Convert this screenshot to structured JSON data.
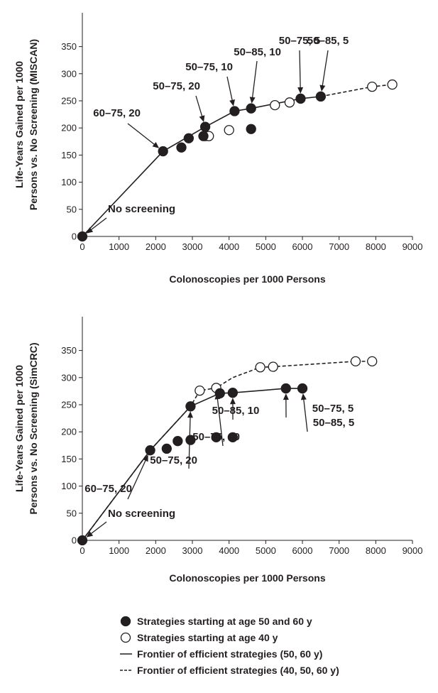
{
  "chart_data": [
    {
      "type": "scatter",
      "xlabel": "Colonoscopies per 1000 Persons",
      "ylabel_line1": "Life-Years Gained per 1000",
      "ylabel_line2": "Persons vs. No Screening (MISCAN)",
      "xlim": [
        0,
        9000
      ],
      "ylim": [
        0,
        350
      ],
      "xticks": [
        "0",
        "1000",
        "2000",
        "3000",
        "4000",
        "5000",
        "6000",
        "7000",
        "8000",
        "9000"
      ],
      "yticks": [
        "0",
        "50",
        "100",
        "150",
        "200",
        "250",
        "300",
        "350"
      ],
      "series": [
        {
          "kind": "filled",
          "points": [
            [
              0,
              0
            ],
            [
              2200,
              157
            ],
            [
              2700,
              164
            ],
            [
              2900,
              181
            ],
            [
              3300,
              185
            ],
            [
              3350,
              202
            ],
            [
              4150,
              231
            ],
            [
              4600,
              198
            ],
            [
              4600,
              236
            ],
            [
              5950,
              254
            ],
            [
              6500,
              258
            ]
          ]
        },
        {
          "kind": "open",
          "points": [
            [
              3350,
              185
            ],
            [
              3450,
              185
            ],
            [
              4000,
              196
            ],
            [
              5250,
              242
            ],
            [
              5650,
              247
            ],
            [
              7900,
              276
            ],
            [
              8450,
              280
            ]
          ]
        },
        {
          "kind": "frontier-solid",
          "points": [
            [
              0,
              0
            ],
            [
              2200,
              157
            ],
            [
              3350,
              202
            ],
            [
              4150,
              231
            ],
            [
              4600,
              236
            ],
            [
              5950,
              254
            ],
            [
              6500,
              258
            ]
          ]
        },
        {
          "kind": "frontier-dashed",
          "points": [
            [
              6500,
              258
            ],
            [
              7900,
              276
            ],
            [
              8450,
              280
            ]
          ]
        }
      ],
      "annotations": [
        {
          "text": "No screening",
          "x": 0,
          "y": 0
        },
        {
          "text": "60–75, 20",
          "x": 2200,
          "y": 157
        },
        {
          "text": "50–75, 20",
          "x": 3350,
          "y": 202
        },
        {
          "text": "50–75, 10",
          "x": 4150,
          "y": 231
        },
        {
          "text": "50–85, 10",
          "x": 4600,
          "y": 236
        },
        {
          "text": "50–75, 5",
          "x": 5950,
          "y": 254
        },
        {
          "text": "50–85, 5",
          "x": 6500,
          "y": 258
        }
      ]
    },
    {
      "type": "scatter",
      "xlabel": "Colonoscopies per 1000 Persons",
      "ylabel_line1": "Life-Years Gained per 1000",
      "ylabel_line2": "Persons vs. No Screening (SimCRC)",
      "xlim": [
        0,
        9000
      ],
      "ylim": [
        0,
        350
      ],
      "xticks": [
        "0",
        "1000",
        "2000",
        "3000",
        "4000",
        "5000",
        "6000",
        "7000",
        "8000",
        "9000"
      ],
      "yticks": [
        "0",
        "50",
        "100",
        "150",
        "200",
        "250",
        "300",
        "350"
      ],
      "series": [
        {
          "kind": "filled",
          "points": [
            [
              0,
              0
            ],
            [
              1850,
              166
            ],
            [
              2300,
              169
            ],
            [
              2600,
              183
            ],
            [
              2950,
              185
            ],
            [
              2950,
              247
            ],
            [
              3650,
              190
            ],
            [
              3750,
              271
            ],
            [
              4100,
              190
            ],
            [
              4100,
              272
            ],
            [
              5550,
              280
            ],
            [
              6000,
              280
            ]
          ]
        },
        {
          "kind": "open",
          "points": [
            [
              3200,
              276
            ],
            [
              3650,
              281
            ],
            [
              4850,
              319
            ],
            [
              5200,
              320
            ],
            [
              7450,
              330
            ],
            [
              7900,
              330
            ]
          ]
        },
        {
          "kind": "frontier-solid",
          "points": [
            [
              0,
              0
            ],
            [
              1850,
              166
            ],
            [
              2950,
              247
            ],
            [
              3750,
              271
            ],
            [
              4100,
              272
            ],
            [
              5550,
              280
            ],
            [
              6000,
              280
            ]
          ]
        },
        {
          "kind": "frontier-dashed",
          "points": [
            [
              0,
              0
            ],
            [
              1850,
              166
            ],
            [
              2950,
              247
            ],
            [
              3200,
              276
            ],
            [
              3650,
              281
            ],
            [
              4100,
              300
            ],
            [
              4850,
              319
            ],
            [
              5200,
              320
            ],
            [
              7450,
              330
            ],
            [
              7900,
              330
            ]
          ]
        }
      ],
      "annotations": [
        {
          "text": "No screening",
          "x": 0,
          "y": 0
        },
        {
          "text": "60–75, 20",
          "x": 1850,
          "y": 166
        },
        {
          "text": "50–75, 20",
          "x": 2950,
          "y": 247
        },
        {
          "text": "50–75, 10",
          "x": 3650,
          "y": 281
        },
        {
          "text": "50–85, 10",
          "x": 4100,
          "y": 272
        },
        {
          "text": "50–75, 5",
          "x": 5550,
          "y": 280
        },
        {
          "text": "50–85, 5",
          "x": 6000,
          "y": 280
        }
      ]
    }
  ],
  "legend": [
    {
      "kind": "filled",
      "label": "Strategies starting at age 50 and 60 y"
    },
    {
      "kind": "open",
      "label": "Strategies starting at age 40 y"
    },
    {
      "kind": "solid",
      "label": "Frontier of efficient strategies (50, 60 y)"
    },
    {
      "kind": "dashed",
      "label": "Frontier of efficient strategies (40, 50, 60 y)"
    }
  ]
}
